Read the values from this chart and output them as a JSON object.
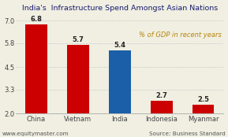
{
  "title": "India's  Infrastructure Spend Amongst Asian Nations",
  "categories": [
    "China",
    "Vietnam",
    "India",
    "Indonesia",
    "Myanmar"
  ],
  "values": [
    6.8,
    5.7,
    5.4,
    2.7,
    2.5
  ],
  "bar_colors": [
    "#cc0000",
    "#cc0000",
    "#1a5fa8",
    "#cc0000",
    "#cc0000"
  ],
  "annotation": "% of GDP in recent years",
  "annotation_color": "#b8860b",
  "ylim": [
    2.0,
    7.4
  ],
  "yticks": [
    2.0,
    3.3,
    4.5,
    5.8,
    7.0
  ],
  "baseline": 2.0,
  "title_fontsize": 6.8,
  "bar_label_fontsize": 6.0,
  "tick_fontsize": 6.0,
  "footer_left": "www.equitymaster.com",
  "footer_right": "Source: Business Standard",
  "footer_fontsize": 5.2,
  "background_color": "#f0efe2",
  "grid_color": "#cccccc",
  "annotation_fontsize": 6.0
}
